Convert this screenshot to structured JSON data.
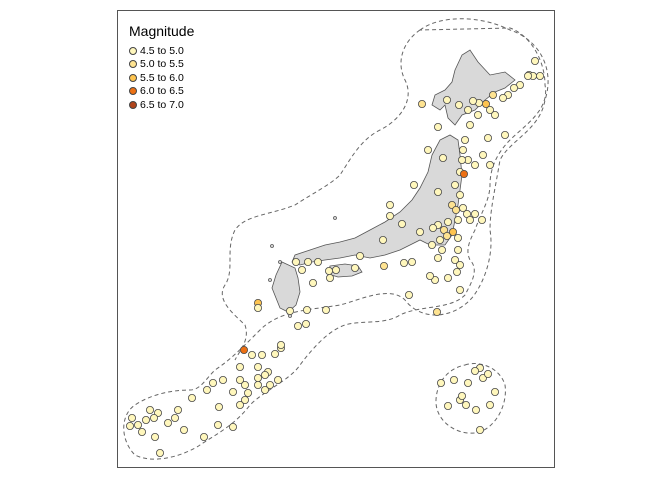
{
  "legend": {
    "title": "Magnitude",
    "items": [
      {
        "label": "4.5 to 5.0",
        "color": "#fff7bc"
      },
      {
        "label": "5.0 to 5.5",
        "color": "#fee391"
      },
      {
        "label": "5.5 to 6.0",
        "color": "#fec44f"
      },
      {
        "label": "6.0 to 6.5",
        "color": "#ec7014"
      },
      {
        "label": "6.5 to 7.0",
        "color": "#b0441a"
      }
    ]
  },
  "style": {
    "land": "#d9d9d9",
    "outline": "#555555",
    "buffer_line": "#666666"
  }
}
